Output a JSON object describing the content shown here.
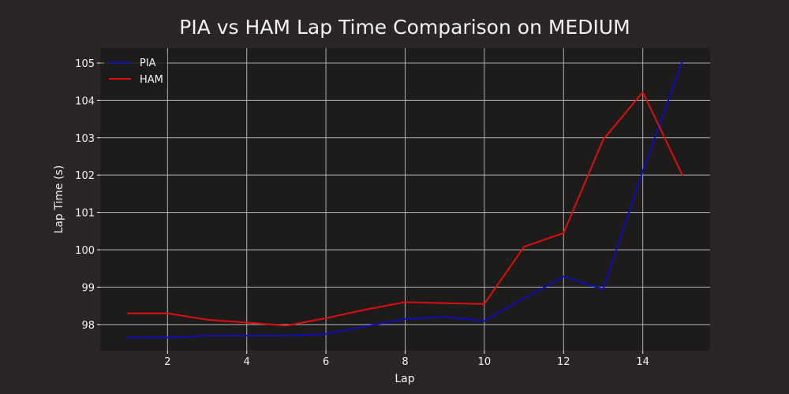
{
  "colors": {
    "figure_bg": "#292625",
    "axes_bg": "#1e1c1b",
    "grid": "#b0b0b0",
    "text": "#f2f2f2",
    "pia": "#0d0dbb",
    "ham": "#e00d0d"
  },
  "chart_data": {
    "type": "line",
    "title": "PIA vs HAM Lap Time Comparison on MEDIUM",
    "xlabel": "Lap",
    "ylabel": "Lap Time (s)",
    "xlim": [
      0.3,
      15.7
    ],
    "ylim": [
      97.3,
      105.4
    ],
    "xticks": [
      2,
      4,
      6,
      8,
      10,
      12,
      14
    ],
    "yticks": [
      98,
      99,
      100,
      101,
      102,
      103,
      104,
      105
    ],
    "grid": true,
    "legend_position": "top-left",
    "x": [
      1,
      2,
      3,
      4,
      5,
      6,
      7,
      8,
      9,
      10,
      11,
      12,
      13,
      14,
      15
    ],
    "series": [
      {
        "name": "PIA",
        "color": "#0d0dbb",
        "values": [
          97.65,
          97.65,
          97.7,
          97.7,
          97.7,
          97.75,
          97.95,
          98.15,
          98.2,
          98.1,
          98.7,
          99.28,
          98.95,
          102.1,
          105.05
        ]
      },
      {
        "name": "HAM",
        "color": "#e00d0d",
        "values": [
          98.3,
          98.3,
          98.13,
          98.05,
          97.97,
          98.17,
          98.4,
          98.6,
          98.57,
          98.55,
          100.08,
          100.45,
          102.95,
          104.22,
          102.0
        ]
      }
    ]
  }
}
